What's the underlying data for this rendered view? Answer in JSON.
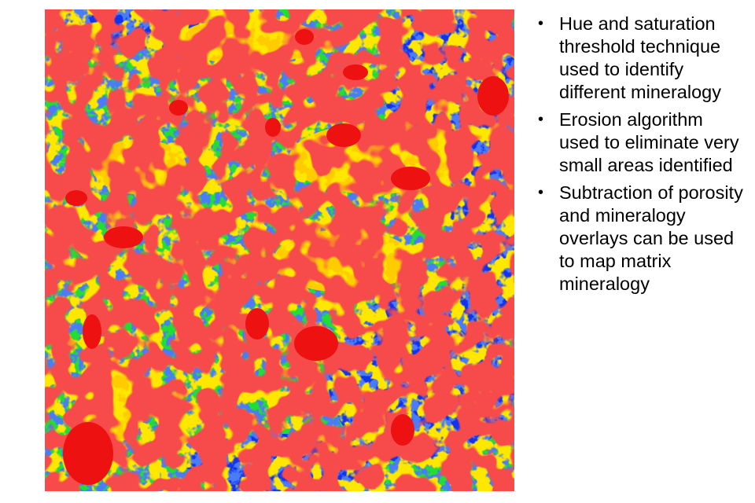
{
  "slide": {
    "bullets": [
      "Hue and saturation threshold technique used to identify different mineralogy",
      "Erosion algorithm used to eliminate very small areas identified",
      "Subtraction of porosity and mineralogy overlays can be used to map matrix mineralogy"
    ],
    "bullet_glyph": "•"
  },
  "map": {
    "colors": {
      "background": "#22dd33",
      "blue": "#1133ee",
      "yellow": "#ffcc00",
      "red": "#ee1111"
    }
  }
}
